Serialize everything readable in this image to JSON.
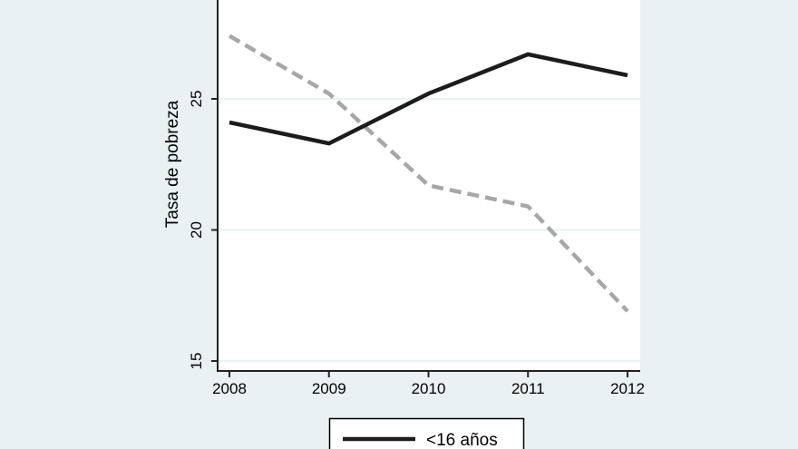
{
  "chart_data": {
    "type": "line",
    "title": "",
    "xlabel": "",
    "ylabel": "Tasa de pobreza",
    "x": [
      2008,
      2009,
      2010,
      2011,
      2012
    ],
    "series": [
      {
        "id": "menores-16-anios",
        "legend_label": "<16 años",
        "line_style": "solid",
        "color": "#1c1c1c",
        "values": [
          24.1,
          23.3,
          25.2,
          26.7,
          25.9
        ]
      },
      {
        "id": "serie-discontinua-gris",
        "legend_label": "",
        "line_style": "dashed",
        "color": "#a7a7a7",
        "values": [
          27.4,
          25.2,
          21.7,
          20.9,
          16.9
        ]
      }
    ],
    "yticks": [
      25,
      20,
      15
    ],
    "xticks": [
      "2008",
      "2009",
      "2010",
      "2011",
      "2012"
    ],
    "ylim_visible": [
      14.6,
      28.8
    ],
    "xlim_visible": [
      2007.9,
      2012.1
    ],
    "grid": true,
    "legend_position": "bottom-center",
    "background_color": "#e9f1f2",
    "plot_background_color": "#ffffff",
    "grid_color": "#e6eff0"
  }
}
